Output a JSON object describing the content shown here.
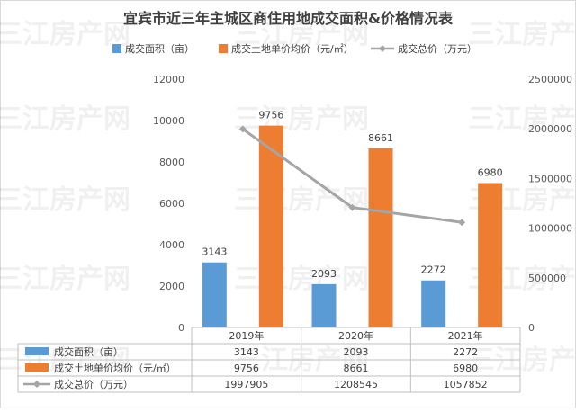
{
  "chart_data": {
    "type": "bar",
    "title": "宜宾市近三年主城区商住用地成交面积&价格情况表",
    "categories": [
      "2019年",
      "2020年",
      "2021年"
    ],
    "series": [
      {
        "name": "成交面积（亩）",
        "type": "bar",
        "axis": "left",
        "color": "#5b9bd5",
        "values": [
          3143,
          2093,
          2272
        ]
      },
      {
        "name": "成交土地单价均价（元/㎡）",
        "type": "bar",
        "axis": "left",
        "color": "#ed7d31",
        "values": [
          9756,
          8661,
          6980
        ]
      },
      {
        "name": "成交总价（万元）",
        "type": "line",
        "axis": "right",
        "color": "#a5a5a5",
        "values": [
          1997905,
          1208545,
          1057852
        ]
      }
    ],
    "y_left": {
      "min": 0,
      "max": 12000,
      "step": 2000
    },
    "y_right": {
      "min": 0,
      "max": 2500000,
      "step": 500000
    },
    "legend": "top",
    "data_table": true,
    "grid": false,
    "watermark": "三江房产网"
  }
}
